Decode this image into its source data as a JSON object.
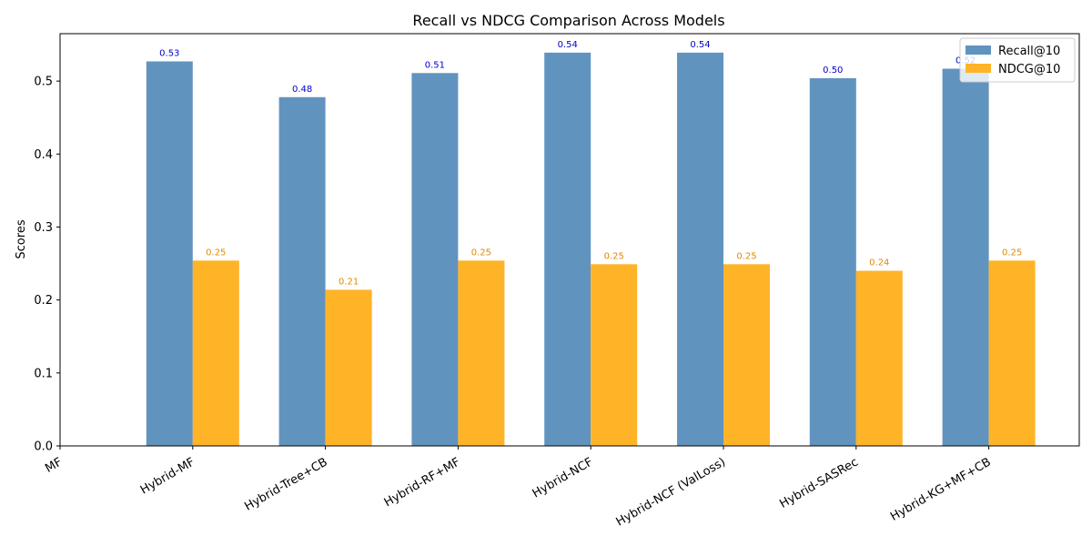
{
  "chart_data": {
    "type": "bar",
    "title": "Recall vs NDCG Comparison Across Models",
    "xlabel": "",
    "ylabel": "Scores",
    "ylim": [
      0,
      0.565
    ],
    "yticks": [
      0.0,
      0.1,
      0.2,
      0.3,
      0.4,
      0.5
    ],
    "ytick_labels": [
      "0.0",
      "0.1",
      "0.2",
      "0.3",
      "0.4",
      "0.5"
    ],
    "categories": [
      "MF",
      "Hybrid-MF",
      "Hybrid-Tree+CB",
      "Hybrid-RF+MF",
      "Hybrid-NCF",
      "Hybrid-NCF (ValLoss)",
      "Hybrid-SASRec",
      "Hybrid-KG+MF+CB"
    ],
    "series": [
      {
        "name": "Recall@10",
        "color": "#6193bf",
        "label_color": "#0000cc",
        "values": [
          null,
          0.527,
          0.478,
          0.511,
          0.539,
          0.539,
          0.504,
          0.517
        ],
        "labels": [
          "",
          "0.53",
          "0.48",
          "0.51",
          "0.54",
          "0.54",
          "0.50",
          "0.52"
        ]
      },
      {
        "name": "NDCG@10",
        "color": "#ffb327",
        "label_color": "#e08a00",
        "values": [
          null,
          0.254,
          0.214,
          0.254,
          0.249,
          0.249,
          0.24,
          0.254
        ],
        "labels": [
          "",
          "0.25",
          "0.21",
          "0.25",
          "0.25",
          "0.25",
          "0.24",
          "0.25"
        ]
      }
    ],
    "grid": false,
    "legend_position": "top-right"
  }
}
